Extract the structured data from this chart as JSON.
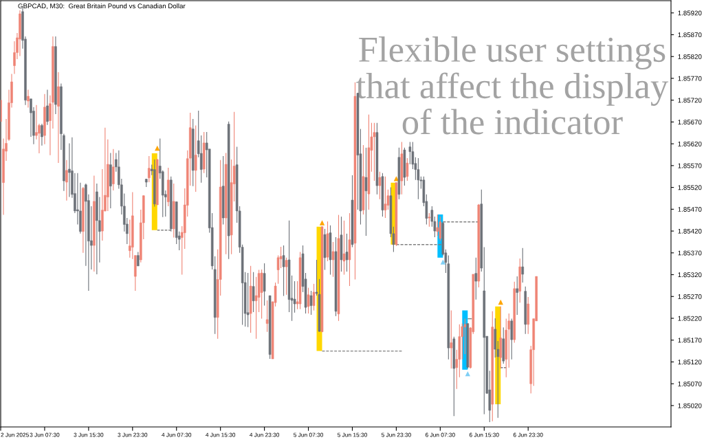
{
  "chart_data": {
    "type": "candlestick",
    "title": "GBPCAD, M30:  Great Britain Pound vs Canadian Dollar",
    "annotations": [
      "Flexible user settings\nthat affect the display\nof the indicator"
    ],
    "xlim": [
      "2025-06-02T23:30",
      "2025-06-08T01:30"
    ],
    "xticks": [
      {
        "value": "2025-06-02T23:30",
        "label": "2 Jun 2025"
      },
      {
        "value": "2025-06-03T07:30",
        "label": "3 Jun 07:30"
      },
      {
        "value": "2025-06-03T15:30",
        "label": "3 Jun 15:30"
      },
      {
        "value": "2025-06-03T23:30",
        "label": "3 Jun 23:30"
      },
      {
        "value": "2025-06-04T07:30",
        "label": "4 Jun 07:30"
      },
      {
        "value": "2025-06-04T15:30",
        "label": "4 Jun 15:30"
      },
      {
        "value": "2025-06-04T23:30",
        "label": "4 Jun 23:30"
      },
      {
        "value": "2025-06-05T07:30",
        "label": "5 Jun 07:30"
      },
      {
        "value": "2025-06-05T15:30",
        "label": "5 Jun 15:30"
      },
      {
        "value": "2025-06-05T23:30",
        "label": "5 Jun 23:30"
      },
      {
        "value": "2025-06-06T07:30",
        "label": "6 Jun 07:30"
      },
      {
        "value": "2025-06-06T15:30",
        "label": "6 Jun 15:30"
      },
      {
        "value": "2025-06-06T23:30",
        "label": "6 Jun 23:30"
      }
    ],
    "ylim": [
      1.84971,
      1.85948
    ],
    "yticks": [
      {
        "value": 1.8502,
        "label": "1.85020"
      },
      {
        "value": 1.8507,
        "label": "1.85070"
      },
      {
        "value": 1.8512,
        "label": "1.85120"
      },
      {
        "value": 1.8517,
        "label": "1.85170"
      },
      {
        "value": 1.8522,
        "label": "1.85220"
      },
      {
        "value": 1.8527,
        "label": "1.85270"
      },
      {
        "value": 1.8532,
        "label": "1.85320"
      },
      {
        "value": 1.8537,
        "label": "1.85370"
      },
      {
        "value": 1.8542,
        "label": "1.85420"
      },
      {
        "value": 1.8547,
        "label": "1.85470"
      },
      {
        "value": 1.8552,
        "label": "1.85520"
      },
      {
        "value": 1.8557,
        "label": "1.85570"
      },
      {
        "value": 1.8562,
        "label": "1.85620"
      },
      {
        "value": 1.8567,
        "label": "1.85670"
      },
      {
        "value": 1.8572,
        "label": "1.85720"
      },
      {
        "value": 1.8577,
        "label": "1.85770"
      },
      {
        "value": 1.8582,
        "label": "1.85820"
      },
      {
        "value": 1.8587,
        "label": "1.85870"
      },
      {
        "value": 1.8592,
        "label": "1.85920"
      }
    ],
    "series": [
      {
        "type": "bar",
        "color": "#ffd700",
        "x": [
          "2025-06-04T03:30",
          "2025-06-05T09:30",
          "2025-06-05T23:00",
          "2025-06-06T18:00"
        ],
        "base": [
          1.85422,
          1.85145,
          1.85389,
          1.85023
        ],
        "values": [
          0.00176,
          0.00285,
          0.00142,
          0.00224
        ]
      },
      {
        "type": "bar",
        "color": "#00bfff",
        "x": [
          "2025-06-06T07:30",
          "2025-06-06T12:00"
        ],
        "base": [
          1.85359,
          1.85102
        ],
        "values": [
          0.00099,
          0.00136
        ]
      },
      {
        "type": "line",
        "color": "#808080",
        "line_style": "dashed",
        "x": [
          "2025-06-04T04:00",
          "2025-06-04T06:30"
        ],
        "values": [
          1.85422,
          1.85422
        ]
      },
      {
        "type": "line",
        "color": "#808080",
        "line_style": "dashed",
        "x": [
          "2025-06-05T10:00",
          "2025-06-06T00:30"
        ],
        "values": [
          1.85145,
          1.85145
        ]
      },
      {
        "type": "line",
        "color": "#808080",
        "line_style": "dashed",
        "x": [
          "2025-06-05T23:30",
          "2025-06-06T07:40"
        ],
        "values": [
          1.85389,
          1.85389
        ]
      },
      {
        "type": "line",
        "color": "#808080",
        "line_style": "dashed",
        "x": [
          "2025-06-06T08:00",
          "2025-06-06T14:30"
        ],
        "values": [
          1.85441,
          1.85441
        ]
      },
      {
        "type": "line",
        "color": "#808080",
        "line_style": "dashed",
        "x": [
          "2025-06-06T12:30",
          "2025-06-06T13:15"
        ],
        "values": [
          1.85219,
          1.85219
        ]
      },
      {
        "type": "line",
        "color": "#808080",
        "line_style": "dashed",
        "x": [
          "2025-06-06T18:30",
          "2025-06-06T19:30"
        ],
        "values": [
          1.85107,
          1.85107
        ]
      },
      {
        "color": "#ef8475",
        "x": [
          "2025-06-02T23:30",
          "2025-06-03T00:00",
          "2025-06-03T00:30",
          "2025-06-03T01:00",
          "2025-06-03T01:30",
          "2025-06-03T02:00",
          "2025-06-03T02:30",
          "2025-06-03T03:00",
          "2025-06-03T04:30",
          "2025-06-03T06:00",
          "2025-06-03T06:30",
          "2025-06-03T07:30",
          "2025-06-03T08:30",
          "2025-06-03T09:00",
          "2025-06-03T10:00",
          "2025-06-03T11:30",
          "2025-06-03T14:30",
          "2025-06-03T16:30",
          "2025-06-03T18:00",
          "2025-06-03T18:30",
          "2025-06-03T19:00",
          "2025-06-03T20:00",
          "2025-06-03T23:00",
          "2025-06-03T23:30",
          "2025-06-04T00:00",
          "2025-06-04T01:00",
          "2025-06-04T01:30",
          "2025-06-04T02:30",
          "2025-06-04T04:00",
          "2025-06-04T06:00",
          "2025-06-04T07:00",
          "2025-06-04T08:30",
          "2025-06-04T09:00",
          "2025-06-04T09:30",
          "2025-06-04T10:00",
          "2025-06-04T11:00",
          "2025-06-04T12:30",
          "2025-06-04T15:00",
          "2025-06-04T15:30",
          "2025-06-04T16:30",
          "2025-06-04T17:30",
          "2025-06-04T18:00",
          "2025-06-04T21:00",
          "2025-06-04T22:00",
          "2025-06-04T22:30",
          "2025-06-04T23:00",
          "2025-06-05T00:00",
          "2025-06-05T01:00",
          "2025-06-05T01:30",
          "2025-06-05T02:00",
          "2025-06-05T02:30",
          "2025-06-05T03:30",
          "2025-06-05T05:30",
          "2025-06-05T06:00",
          "2025-06-05T07:30",
          "2025-06-05T08:30",
          "2025-06-05T10:00",
          "2025-06-05T11:00",
          "2025-06-05T12:00",
          "2025-06-05T13:00",
          "2025-06-05T14:00",
          "2025-06-05T15:00",
          "2025-06-05T16:00",
          "2025-06-05T17:30",
          "2025-06-05T18:30",
          "2025-06-05T19:00",
          "2025-06-05T19:30",
          "2025-06-05T20:30",
          "2025-06-05T21:30",
          "2025-06-05T22:00",
          "2025-06-05T23:30",
          "2025-06-06T00:30",
          "2025-06-06T01:30",
          "2025-06-06T05:30",
          "2025-06-06T07:00",
          "2025-06-06T07:30",
          "2025-06-06T09:30",
          "2025-06-06T10:30",
          "2025-06-06T11:00",
          "2025-06-06T11:30",
          "2025-06-06T12:00",
          "2025-06-06T13:00",
          "2025-06-06T13:30",
          "2025-06-06T14:30",
          "2025-06-06T17:00",
          "2025-06-06T18:30",
          "2025-06-06T19:30",
          "2025-06-06T20:00",
          "2025-06-06T21:00",
          "2025-06-06T22:00",
          "2025-06-06T23:30",
          "2025-06-07T00:00",
          "2025-06-07T00:30",
          "2025-06-07T01:00"
        ],
        "ohlc": [
          [
            1.85671,
            1.8572,
            1.85671,
            1.8572
          ],
          [
            1.85531,
            1.85632,
            1.85457,
            1.85608
          ],
          [
            1.85603,
            1.85677,
            1.85581,
            1.85621
          ],
          [
            1.8563,
            1.85744,
            1.85627,
            1.85714
          ],
          [
            1.85714,
            1.8578,
            1.85703,
            1.85762
          ],
          [
            1.85799,
            1.85855,
            1.8578,
            1.85829
          ],
          [
            1.85829,
            1.85874,
            1.85814,
            1.85863
          ],
          [
            1.8586,
            1.85926,
            1.85821,
            1.85918
          ],
          [
            1.85718,
            1.85744,
            1.85703,
            1.85729
          ],
          [
            1.85639,
            1.85709,
            1.8563,
            1.85646
          ],
          [
            1.85644,
            1.85666,
            1.85598,
            1.85662
          ],
          [
            1.85639,
            1.85734,
            1.85619,
            1.85704
          ],
          [
            1.85673,
            1.85731,
            1.85594,
            1.85712
          ],
          [
            1.85715,
            1.85866,
            1.85655,
            1.85843
          ],
          [
            1.85706,
            1.85784,
            1.85576,
            1.85751
          ],
          [
            1.85532,
            1.85583,
            1.8549,
            1.85559
          ],
          [
            1.85419,
            1.85521,
            1.8537,
            1.85518
          ],
          [
            1.85387,
            1.85547,
            1.85327,
            1.85488
          ],
          [
            1.8542,
            1.85562,
            1.85398,
            1.85468
          ],
          [
            1.85466,
            1.85657,
            1.85465,
            1.85502
          ],
          [
            1.85498,
            1.8563,
            1.85466,
            1.85573
          ],
          [
            1.85528,
            1.85608,
            1.85513,
            1.85567
          ],
          [
            1.85375,
            1.85446,
            1.85359,
            1.85386
          ],
          [
            1.85383,
            1.85509,
            1.85356,
            1.85455
          ],
          [
            1.85316,
            1.85364,
            1.85283,
            1.85364
          ],
          [
            1.85354,
            1.85469,
            1.85348,
            1.85439
          ],
          [
            1.85439,
            1.85502,
            1.85401,
            1.85501
          ],
          [
            1.85542,
            1.85592,
            1.85532,
            1.85564
          ],
          [
            1.8548,
            1.85585,
            1.8548,
            1.85584
          ],
          [
            1.85487,
            1.85565,
            1.85477,
            1.85537
          ],
          [
            1.85425,
            1.85529,
            1.85405,
            1.85488
          ],
          [
            1.85405,
            1.85431,
            1.8532,
            1.85417
          ],
          [
            1.85416,
            1.85518,
            1.85379,
            1.8548
          ],
          [
            1.85479,
            1.85605,
            1.85453,
            1.85586
          ],
          [
            1.85587,
            1.85691,
            1.85524,
            1.85657
          ],
          [
            1.85559,
            1.85662,
            1.8551,
            1.85594
          ],
          [
            1.85562,
            1.85647,
            1.85553,
            1.85622
          ],
          [
            1.85222,
            1.85378,
            1.85173,
            1.85309
          ],
          [
            1.85309,
            1.85583,
            1.85272,
            1.85521
          ],
          [
            1.8545,
            1.85599,
            1.85367,
            1.85573
          ],
          [
            1.85411,
            1.85584,
            1.85367,
            1.85531
          ],
          [
            1.85528,
            1.85693,
            1.85488,
            1.85569
          ],
          [
            1.85231,
            1.8534,
            1.85187,
            1.85294
          ],
          [
            1.8526,
            1.85315,
            1.85173,
            1.85272
          ],
          [
            1.85268,
            1.85331,
            1.85234,
            1.85323
          ],
          [
            1.85279,
            1.85332,
            1.85219,
            1.85324
          ],
          [
            1.85208,
            1.85261,
            1.85189,
            1.85217
          ],
          [
            1.85127,
            1.85258,
            1.85127,
            1.85258
          ],
          [
            1.85256,
            1.85302,
            1.85247,
            1.85294
          ],
          [
            1.85331,
            1.85364,
            1.85299,
            1.85359
          ],
          [
            1.85356,
            1.85384,
            1.85335,
            1.85362
          ],
          [
            1.85338,
            1.85359,
            1.85274,
            1.85353
          ],
          [
            1.85253,
            1.85305,
            1.85241,
            1.85258
          ],
          [
            1.85253,
            1.85372,
            1.85241,
            1.85359
          ],
          [
            1.85247,
            1.8529,
            1.85231,
            1.85274
          ],
          [
            1.85249,
            1.85299,
            1.85238,
            1.8528
          ],
          [
            1.85189,
            1.8543,
            1.85189,
            1.8543
          ],
          [
            1.8536,
            1.85442,
            1.85351,
            1.85414
          ],
          [
            1.85354,
            1.85395,
            1.85315,
            1.85373
          ],
          [
            1.8523,
            1.85457,
            1.85214,
            1.85403
          ],
          [
            1.85351,
            1.85444,
            1.8532,
            1.85368
          ],
          [
            1.85354,
            1.85461,
            1.85294,
            1.854
          ],
          [
            1.85392,
            1.85761,
            1.85309,
            1.85729
          ],
          [
            1.85468,
            1.85617,
            1.85458,
            1.85545
          ],
          [
            1.85505,
            1.85687,
            1.85469,
            1.85611
          ],
          [
            1.85605,
            1.85668,
            1.85556,
            1.85636
          ],
          [
            1.85636,
            1.85668,
            1.85535,
            1.85646
          ],
          [
            1.85524,
            1.85556,
            1.85493,
            1.85543
          ],
          [
            1.85468,
            1.85545,
            1.8545,
            1.85482
          ],
          [
            1.85479,
            1.85515,
            1.85469,
            1.85501
          ],
          [
            1.85389,
            1.85531,
            1.85386,
            1.85531
          ],
          [
            1.85535,
            1.85624,
            1.85504,
            1.85597
          ],
          [
            1.85545,
            1.85587,
            1.85535,
            1.85576
          ],
          [
            1.8545,
            1.85461,
            1.8543,
            1.85452
          ],
          [
            1.85419,
            1.85458,
            1.85409,
            1.85428
          ],
          [
            1.85403,
            1.85453,
            1.85398,
            1.85441
          ],
          [
            1.85152,
            1.85238,
            1.85105,
            1.85164
          ],
          [
            1.85107,
            1.85148,
            1.85058,
            1.85126
          ],
          [
            1.85126,
            1.85206,
            1.85085,
            1.85178
          ],
          [
            1.85178,
            1.85208,
            1.85126,
            1.85201
          ],
          [
            1.852,
            1.85219,
            1.85138,
            1.85206
          ],
          [
            1.85107,
            1.852,
            1.85105,
            1.85198
          ],
          [
            1.85189,
            1.85321,
            1.85184,
            1.85321
          ],
          [
            1.85305,
            1.85482,
            1.85291,
            1.8548
          ],
          [
            1.85023,
            1.85236,
            1.84984,
            1.852
          ],
          [
            1.8513,
            1.85247,
            1.85105,
            1.85175
          ],
          [
            1.85126,
            1.85219,
            1.85085,
            1.85193
          ],
          [
            1.85195,
            1.85231,
            1.85107,
            1.85214
          ],
          [
            1.85171,
            1.85304,
            1.85164,
            1.85288
          ],
          [
            1.85282,
            1.85357,
            1.85256,
            1.85338
          ],
          [
            1.85206,
            1.85269,
            1.85184,
            1.85253
          ],
          [
            1.8507,
            1.85157,
            1.85048,
            1.85148
          ],
          [
            1.85148,
            1.85219,
            1.85065,
            1.85219
          ],
          [
            1.85214,
            1.85316,
            1.85214,
            1.85316
          ]
        ]
      },
      {
        "color": "#6c7178",
        "x": [
          "2025-06-03T03:30",
          "2025-06-03T04:00",
          "2025-06-03T05:00",
          "2025-06-03T05:30",
          "2025-06-03T07:00",
          "2025-06-03T08:00",
          "2025-06-03T09:30",
          "2025-06-03T10:30",
          "2025-06-03T11:00",
          "2025-06-03T12:00",
          "2025-06-03T12:30",
          "2025-06-03T13:00",
          "2025-06-03T13:30",
          "2025-06-03T14:00",
          "2025-06-03T15:00",
          "2025-06-03T15:30",
          "2025-06-03T16:00",
          "2025-06-03T17:00",
          "2025-06-03T17:30",
          "2025-06-03T19:30",
          "2025-06-03T20:30",
          "2025-06-03T21:00",
          "2025-06-03T21:30",
          "2025-06-03T22:00",
          "2025-06-03T22:30",
          "2025-06-04T00:30",
          "2025-06-04T02:00",
          "2025-06-04T03:00",
          "2025-06-04T03:30",
          "2025-06-04T04:30",
          "2025-06-04T05:00",
          "2025-06-04T05:30",
          "2025-06-04T06:30",
          "2025-06-04T07:30",
          "2025-06-04T08:00",
          "2025-06-04T10:30",
          "2025-06-04T11:30",
          "2025-06-04T12:00",
          "2025-06-04T13:00",
          "2025-06-04T13:30",
          "2025-06-04T14:00",
          "2025-06-04T14:30",
          "2025-06-04T16:00",
          "2025-06-04T17:00",
          "2025-06-04T18:30",
          "2025-06-04T19:00",
          "2025-06-04T19:30",
          "2025-06-04T20:00",
          "2025-06-04T20:30",
          "2025-06-04T21:30",
          "2025-06-04T23:30",
          "2025-06-05T00:30",
          "2025-06-05T03:00",
          "2025-06-05T04:00",
          "2025-06-05T04:30",
          "2025-06-05T05:00",
          "2025-06-05T06:30",
          "2025-06-05T07:00",
          "2025-06-05T08:00",
          "2025-06-05T09:00",
          "2025-06-05T09:30",
          "2025-06-05T10:30",
          "2025-06-05T11:30",
          "2025-06-05T12:30",
          "2025-06-05T13:30",
          "2025-06-05T14:30",
          "2025-06-05T15:30",
          "2025-06-05T16:30",
          "2025-06-05T17:00",
          "2025-06-05T18:00",
          "2025-06-05T20:00",
          "2025-06-05T21:00",
          "2025-06-05T22:30",
          "2025-06-05T23:00",
          "2025-06-06T00:00",
          "2025-06-06T01:00",
          "2025-06-06T02:00",
          "2025-06-06T02:30",
          "2025-06-06T03:00",
          "2025-06-06T03:30",
          "2025-06-06T04:00",
          "2025-06-06T04:30",
          "2025-06-06T05:00",
          "2025-06-06T06:00",
          "2025-06-06T06:30",
          "2025-06-06T08:00",
          "2025-06-06T08:30",
          "2025-06-06T09:00",
          "2025-06-06T10:00",
          "2025-06-06T12:30",
          "2025-06-06T14:00",
          "2025-06-06T15:00",
          "2025-06-06T15:30",
          "2025-06-06T16:00",
          "2025-06-06T16:30",
          "2025-06-06T17:30",
          "2025-06-06T18:00",
          "2025-06-06T19:00",
          "2025-06-06T20:30",
          "2025-06-06T21:30",
          "2025-06-06T22:30",
          "2025-06-06T23:00"
        ],
        "ohlc": [
          [
            1.85923,
            1.85931,
            1.85838,
            1.85857
          ],
          [
            1.8586,
            1.85866,
            1.85709,
            1.8572
          ],
          [
            1.85723,
            1.85723,
            1.85636,
            1.85691
          ],
          [
            1.85695,
            1.85704,
            1.85619,
            1.85639
          ],
          [
            1.85662,
            1.85666,
            1.85616,
            1.85636
          ],
          [
            1.85707,
            1.85744,
            1.85663,
            1.85671
          ],
          [
            1.85843,
            1.85866,
            1.85688,
            1.8571
          ],
          [
            1.85751,
            1.85758,
            1.85606,
            1.85643
          ],
          [
            1.85639,
            1.85643,
            1.85512,
            1.85535
          ],
          [
            1.85562,
            1.85621,
            1.85498,
            1.85554
          ],
          [
            1.85558,
            1.85635,
            1.85496,
            1.85504
          ],
          [
            1.85506,
            1.85553,
            1.85461,
            1.85466
          ],
          [
            1.85469,
            1.85553,
            1.85435,
            1.85466
          ],
          [
            1.85466,
            1.85531,
            1.85414,
            1.85419
          ],
          [
            1.85526,
            1.85529,
            1.8534,
            1.85488
          ],
          [
            1.8549,
            1.85504,
            1.85283,
            1.85397
          ],
          [
            1.85398,
            1.85477,
            1.85332,
            1.85387
          ],
          [
            1.8551,
            1.85529,
            1.85321,
            1.85444
          ],
          [
            1.85444,
            1.85498,
            1.85348,
            1.85419
          ],
          [
            1.85572,
            1.85599,
            1.85472,
            1.85523
          ],
          [
            1.85584,
            1.85599,
            1.85556,
            1.85567
          ],
          [
            1.85567,
            1.85605,
            1.85517,
            1.85526
          ],
          [
            1.85526,
            1.8554,
            1.85458,
            1.85477
          ],
          [
            1.85477,
            1.85506,
            1.85419,
            1.85435
          ],
          [
            1.85436,
            1.8545,
            1.8539,
            1.85414
          ],
          [
            1.85364,
            1.85372,
            1.8534,
            1.8534
          ],
          [
            1.85539,
            1.8554,
            1.85521,
            1.85532
          ],
          [
            1.85562,
            1.85572,
            1.85548,
            1.85558
          ],
          [
            1.85561,
            1.85584,
            1.85476,
            1.85482
          ],
          [
            1.85569,
            1.85632,
            1.8554,
            1.85553
          ],
          [
            1.85556,
            1.85559,
            1.85452,
            1.85502
          ],
          [
            1.85504,
            1.85513,
            1.85453,
            1.85498
          ],
          [
            1.85537,
            1.85545,
            1.85419,
            1.85425
          ],
          [
            1.85487,
            1.85488,
            1.8539,
            1.85405
          ],
          [
            1.85409,
            1.85419,
            1.85376,
            1.85401
          ],
          [
            1.85654,
            1.85677,
            1.85523,
            1.85559
          ],
          [
            1.85627,
            1.85696,
            1.85589,
            1.85597
          ],
          [
            1.85598,
            1.85639,
            1.85531,
            1.85561
          ],
          [
            1.85622,
            1.85647,
            1.85543,
            1.85606
          ],
          [
            1.85608,
            1.85608,
            1.85416,
            1.85427
          ],
          [
            1.85428,
            1.85461,
            1.85332,
            1.8534
          ],
          [
            1.85332,
            1.85362,
            1.85184,
            1.85222
          ],
          [
            1.85523,
            1.85592,
            1.85435,
            1.8545
          ],
          [
            1.85665,
            1.85671,
            1.85356,
            1.85409
          ],
          [
            1.85572,
            1.85613,
            1.85439,
            1.85466
          ],
          [
            1.85466,
            1.85477,
            1.8537,
            1.85383
          ],
          [
            1.85383,
            1.85389,
            1.85205,
            1.85301
          ],
          [
            1.85302,
            1.85326,
            1.85201,
            1.85231
          ],
          [
            1.85233,
            1.85324,
            1.852,
            1.85228
          ],
          [
            1.85293,
            1.85326,
            1.85234,
            1.8526
          ],
          [
            1.85323,
            1.85346,
            1.85249,
            1.85282
          ],
          [
            1.85272,
            1.85272,
            1.85127,
            1.85137
          ],
          [
            1.85364,
            1.85387,
            1.85271,
            1.85338
          ],
          [
            1.85354,
            1.85444,
            1.85234,
            1.85263
          ],
          [
            1.85266,
            1.85318,
            1.85214,
            1.85261
          ],
          [
            1.85264,
            1.85305,
            1.85233,
            1.85253
          ],
          [
            1.85368,
            1.85387,
            1.8528,
            1.85293
          ],
          [
            1.8531,
            1.85324,
            1.85231,
            1.85245
          ],
          [
            1.85272,
            1.85283,
            1.85228,
            1.85249
          ],
          [
            1.8528,
            1.85354,
            1.85272,
            1.85277
          ],
          [
            1.85275,
            1.8531,
            1.85189,
            1.8519
          ],
          [
            1.85412,
            1.85425,
            1.85331,
            1.85359
          ],
          [
            1.85416,
            1.85433,
            1.8532,
            1.85354
          ],
          [
            1.85373,
            1.85406,
            1.85225,
            1.85236
          ],
          [
            1.85411,
            1.85453,
            1.85327,
            1.85354
          ],
          [
            1.85372,
            1.85414,
            1.85327,
            1.85354
          ],
          [
            1.85491,
            1.85548,
            1.85383,
            1.85389
          ],
          [
            1.85736,
            1.85737,
            1.85469,
            1.85594
          ],
          [
            1.85597,
            1.85654,
            1.85435,
            1.85466
          ],
          [
            1.85543,
            1.85611,
            1.85409,
            1.85512
          ],
          [
            1.85646,
            1.85668,
            1.85504,
            1.85524
          ],
          [
            1.85545,
            1.85553,
            1.85453,
            1.85468
          ],
          [
            1.85501,
            1.8552,
            1.85406,
            1.85414
          ],
          [
            1.85414,
            1.8543,
            1.85372,
            1.85389
          ],
          [
            1.85589,
            1.85611,
            1.85493,
            1.85504
          ],
          [
            1.85606,
            1.85611,
            1.85524,
            1.85543
          ],
          [
            1.85613,
            1.85624,
            1.85573,
            1.85602
          ],
          [
            1.85602,
            1.85624,
            1.85562,
            1.85573
          ],
          [
            1.85575,
            1.85589,
            1.85537,
            1.85561
          ],
          [
            1.85561,
            1.85587,
            1.85493,
            1.85537
          ],
          [
            1.85537,
            1.85545,
            1.85517,
            1.85535
          ],
          [
            1.85537,
            1.85545,
            1.85477,
            1.85485
          ],
          [
            1.85488,
            1.85504,
            1.85435,
            1.85449
          ],
          [
            1.85468,
            1.85477,
            1.8543,
            1.85442
          ],
          [
            1.85442,
            1.85453,
            1.85406,
            1.8542
          ],
          [
            1.85438,
            1.85441,
            1.85364,
            1.85367
          ],
          [
            1.8537,
            1.85378,
            1.85324,
            1.85348
          ],
          [
            1.85345,
            1.85364,
            1.85126,
            1.85152
          ],
          [
            1.85173,
            1.85178,
            1.84996,
            1.85105
          ],
          [
            1.85208,
            1.85208,
            1.85105,
            1.85108
          ],
          [
            1.85323,
            1.85359,
            1.85263,
            1.85305
          ],
          [
            1.85482,
            1.85515,
            1.85327,
            1.85335
          ],
          [
            1.85283,
            1.85383,
            1.85,
            1.85176
          ],
          [
            1.85179,
            1.85179,
            1.85047,
            1.85048
          ],
          [
            1.85056,
            1.851,
            1.84982,
            1.85009
          ],
          [
            1.85195,
            1.8522,
            1.8513,
            1.85149
          ],
          [
            1.85149,
            1.85168,
            1.84992,
            1.85132
          ],
          [
            1.85173,
            1.85199,
            1.85116,
            1.85122
          ],
          [
            1.85214,
            1.85219,
            1.85126,
            1.85171
          ],
          [
            1.85288,
            1.85316,
            1.85228,
            1.85279
          ],
          [
            1.85338,
            1.85381,
            1.85302,
            1.85321
          ],
          [
            1.85282,
            1.85293,
            1.85184,
            1.85206
          ]
        ]
      },
      {
        "type": "scatter",
        "color": "#ffa500",
        "marker": "triangle",
        "x": [
          "2025-06-04T04:00",
          "2025-06-05T10:00",
          "2025-06-05T23:30",
          "2025-06-06T18:30"
        ],
        "values": [
          1.8561,
          1.85439,
          1.8554,
          1.85257
        ]
      },
      {
        "type": "scatter",
        "color": "#7fcff5",
        "marker": "triangle",
        "x": [
          "2025-06-06T08:00",
          "2025-06-06T12:30"
        ],
        "values": [
          1.85349,
          1.85093
        ]
      }
    ]
  }
}
